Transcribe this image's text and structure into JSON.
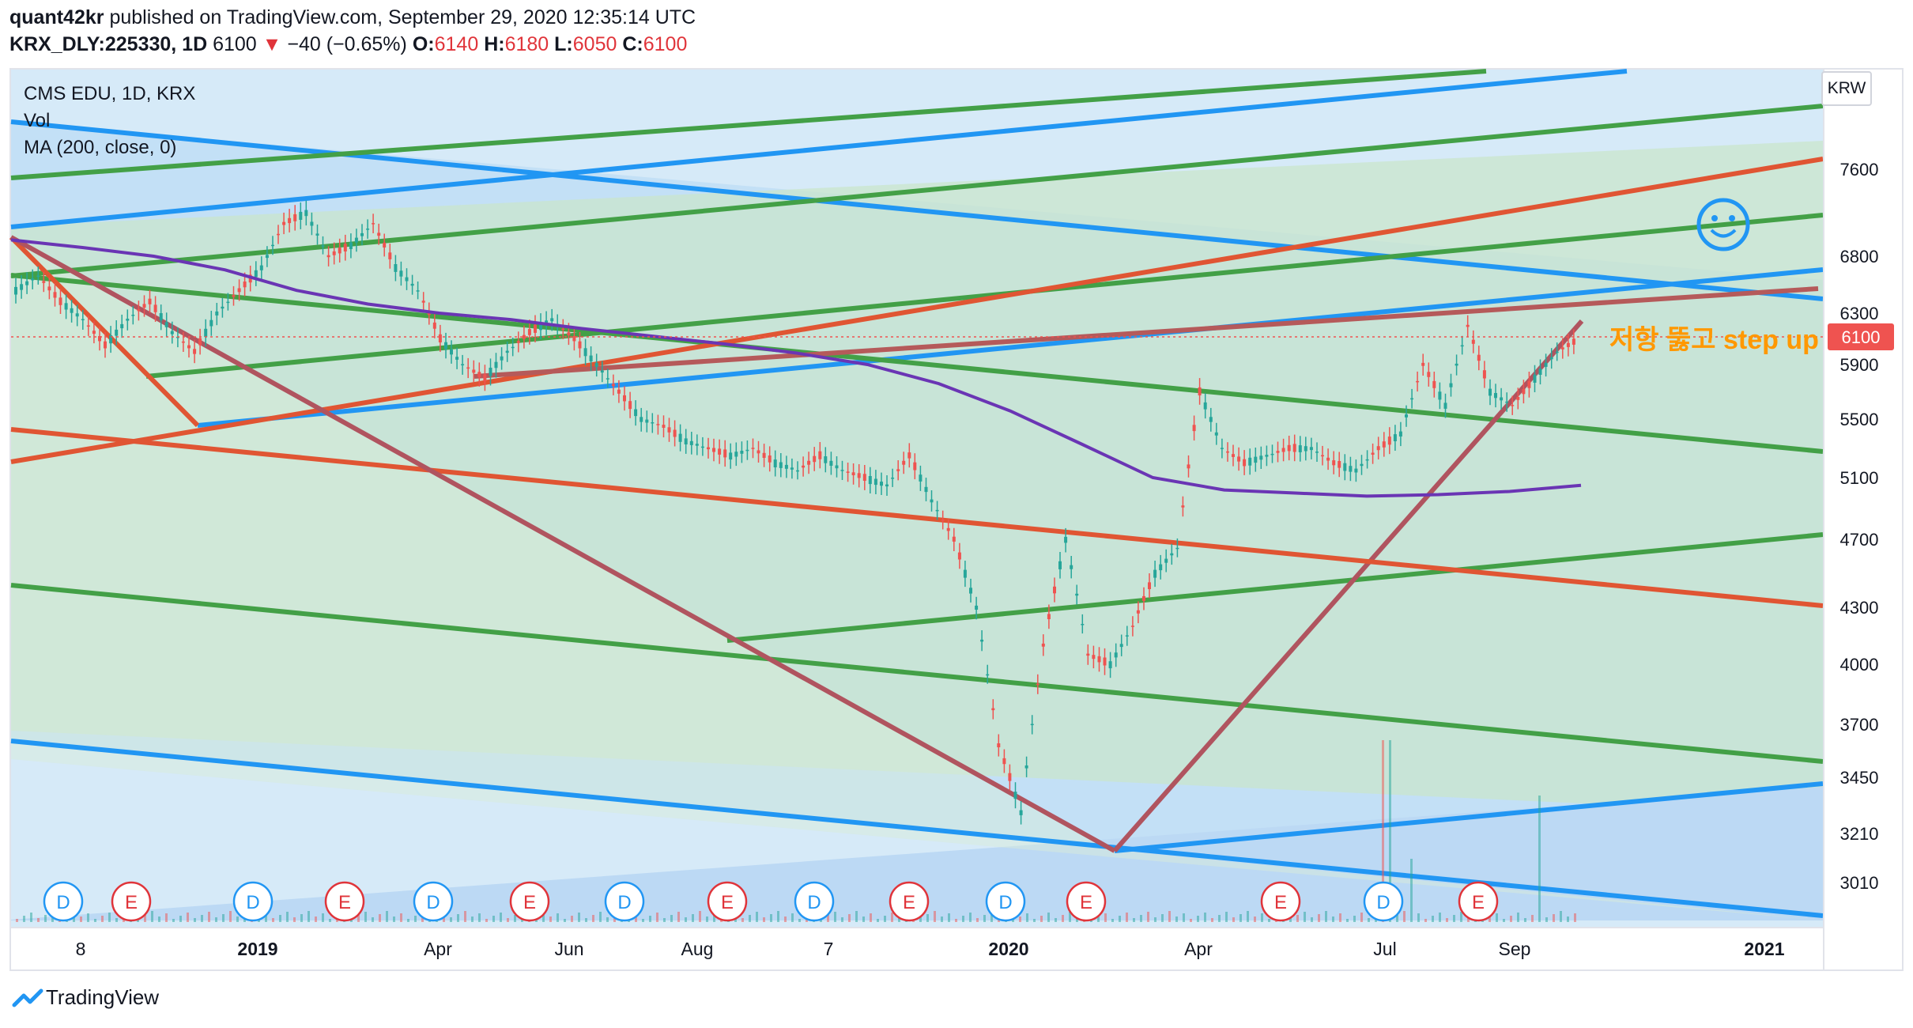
{
  "header": {
    "author": "quant42kr",
    "published_text": "published on TradingView.com, September 29, 2020 12:35:14 UTC",
    "symbol": "KRX_DLY:225330, 1D",
    "last": "6100",
    "change": "−40 (−0.65%)",
    "o_label": "O:",
    "o_value": "6140",
    "h_label": "H:",
    "h_value": "6180",
    "l_label": "L:",
    "l_value": "6050",
    "c_label": "C:",
    "c_value": "6100"
  },
  "legend": {
    "title": "CMS EDU, 1D, KRX",
    "vol": "Vol",
    "ma": "MA (200, close, 0)"
  },
  "currency": "KRW",
  "annotation": "저항 뚫고 step up",
  "footer": {
    "logo_text": "TradingView"
  },
  "colors": {
    "blue": "#2196f3",
    "green": "#43a047",
    "red": "#e05533",
    "purple": "#6a35b4",
    "up": "#26a69a",
    "down": "#ef5350",
    "price_label": "#ef5350"
  },
  "chart_data": {
    "type": "candlestick",
    "title": "CMS EDU, 1D, KRX",
    "price_label": "6100",
    "y_ticks": [
      "7600",
      "6800",
      "6300",
      "5900",
      "5500",
      "5100",
      "4700",
      "4300",
      "4000",
      "3700",
      "3450",
      "3210",
      "3010"
    ],
    "x_ticks": [
      {
        "label": "8",
        "bold": false
      },
      {
        "label": "2019",
        "bold": true
      },
      {
        "label": "Apr",
        "bold": false
      },
      {
        "label": "Jun",
        "bold": false
      },
      {
        "label": "Aug",
        "bold": false
      },
      {
        "label": "7",
        "bold": false
      },
      {
        "label": "2020",
        "bold": true
      },
      {
        "label": "Apr",
        "bold": false
      },
      {
        "label": "Jul",
        "bold": false
      },
      {
        "label": "Sep",
        "bold": false
      },
      {
        "label": "2021",
        "bold": true
      }
    ],
    "events": [
      "D",
      "E",
      "D",
      "E",
      "D",
      "E",
      "D",
      "E",
      "D",
      "E",
      "D",
      "E",
      "E",
      "D",
      "E"
    ],
    "ma_200": [
      6950,
      6880,
      6800,
      6680,
      6500,
      6380,
      6300,
      6250,
      6180,
      6120,
      6060,
      5990,
      5900,
      5760,
      5560,
      5330,
      5100,
      5020,
      5000,
      4980,
      4990,
      5010,
      5050
    ],
    "close_path": [
      6500,
      6630,
      6400,
      6250,
      6050,
      6250,
      6400,
      6150,
      6000,
      6300,
      6500,
      6700,
      7100,
      7200,
      6800,
      6900,
      7100,
      6700,
      6500,
      6100,
      5900,
      5800,
      6000,
      6150,
      6250,
      6100,
      5900,
      5700,
      5500,
      5450,
      5350,
      5300,
      5250,
      5300,
      5200,
      5150,
      5250,
      5150,
      5100,
      5050,
      5250,
      4950,
      4700,
      4300,
      3600,
      3300,
      4100,
      4700,
      4050,
      4000,
      4200,
      4500,
      4650,
      5700,
      5300,
      5200,
      5250,
      5300,
      5300,
      5200,
      5150,
      5300,
      5400,
      5900,
      5600,
      6200,
      5700,
      5600,
      5800,
      6000,
      6100
    ]
  }
}
